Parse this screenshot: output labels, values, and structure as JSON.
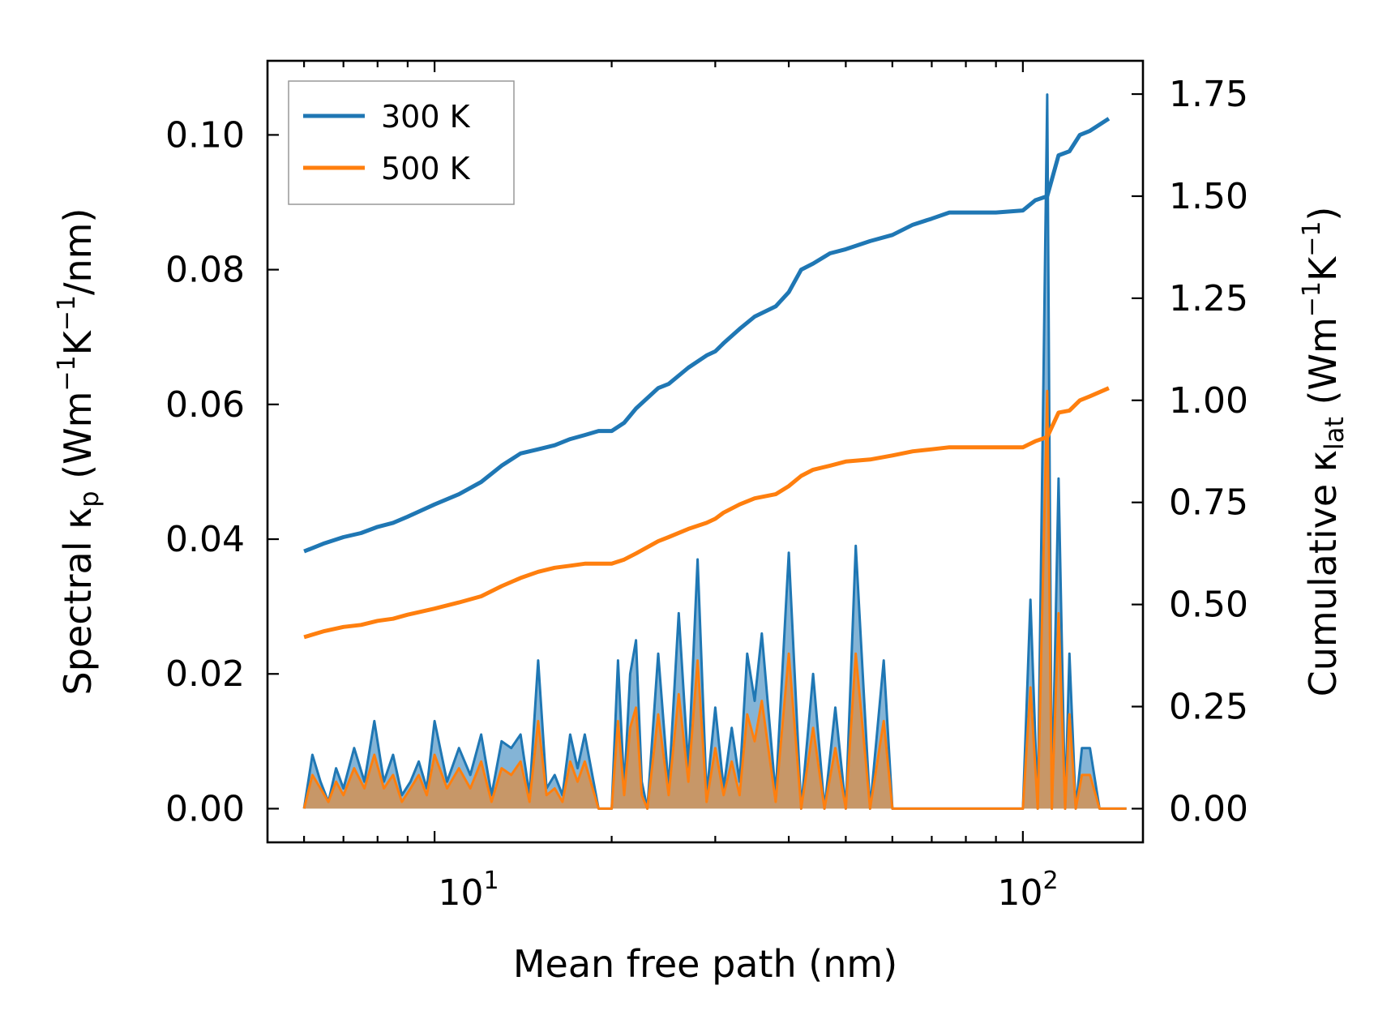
{
  "chart_data": {
    "type": "line",
    "xlabel": "Mean free path (nm)",
    "ylabel_left": "Spectral κp (Wm−1K−1/nm)",
    "ylabel_right": "Cumulative κlat (Wm−1K−1)",
    "xscale": "log",
    "xlim": [
      5.2,
      160
    ],
    "ylim_left": [
      -0.005,
      0.111
    ],
    "ylim_right": [
      -0.0825,
      1.8315
    ],
    "x_ticks": [
      {
        "value": 10,
        "base": "10",
        "exp": "1"
      },
      {
        "value": 100,
        "base": "10",
        "exp": "2"
      }
    ],
    "y_left_ticks": [
      0.0,
      0.02,
      0.04,
      0.06,
      0.08,
      0.1
    ],
    "y_left_tick_labels": [
      "0.00",
      "0.02",
      "0.04",
      "0.06",
      "0.08",
      "0.10"
    ],
    "y_right_ticks": [
      0.0,
      0.25,
      0.5,
      0.75,
      1.0,
      1.25,
      1.5,
      1.75
    ],
    "y_right_tick_labels": [
      "0.00",
      "0.25",
      "0.50",
      "0.75",
      "1.00",
      "1.25",
      "1.50",
      "1.75"
    ],
    "legend": {
      "position": "top-left",
      "entries": [
        "300 K",
        "500 K"
      ]
    },
    "series": [
      {
        "name": "300 K",
        "color": "#1f77b4",
        "cumulative": {
          "x": [
            6.0,
            6.5,
            7.0,
            7.5,
            8.0,
            8.5,
            9.0,
            10.0,
            11.0,
            12.0,
            13.0,
            14.0,
            15.0,
            16.0,
            17.0,
            18.0,
            19.0,
            20.0,
            21.0,
            22.0,
            24.0,
            25.0,
            27.0,
            29.0,
            30.0,
            31.0,
            33.0,
            35.0,
            38.0,
            40.0,
            42.0,
            44.0,
            47.0,
            50.0,
            55.0,
            60.0,
            65.0,
            70.0,
            75.0,
            80.0,
            90.0,
            100.0,
            105.0,
            110.0,
            115.0,
            120.0,
            125.0,
            130.0,
            140.0
          ],
          "y": [
            0.63,
            0.65,
            0.665,
            0.675,
            0.69,
            0.7,
            0.715,
            0.745,
            0.77,
            0.8,
            0.84,
            0.87,
            0.88,
            0.89,
            0.905,
            0.915,
            0.925,
            0.925,
            0.945,
            0.98,
            1.03,
            1.04,
            1.08,
            1.11,
            1.12,
            1.14,
            1.175,
            1.205,
            1.23,
            1.265,
            1.32,
            1.335,
            1.36,
            1.37,
            1.39,
            1.405,
            1.43,
            1.445,
            1.46,
            1.46,
            1.46,
            1.465,
            1.49,
            1.5,
            1.6,
            1.61,
            1.65,
            1.66,
            1.69
          ]
        },
        "spectral": {
          "x": [
            6.0,
            6.2,
            6.4,
            6.6,
            6.8,
            7.0,
            7.3,
            7.6,
            7.9,
            8.2,
            8.5,
            8.8,
            9.1,
            9.4,
            9.7,
            10.0,
            10.5,
            11.0,
            11.5,
            12.0,
            12.5,
            13.0,
            13.5,
            14.0,
            14.5,
            15.0,
            15.5,
            16.0,
            16.5,
            17.0,
            17.5,
            18.0,
            19.0,
            20.0,
            20.5,
            21.0,
            21.5,
            22.0,
            22.5,
            23.0,
            24.0,
            25.0,
            26.0,
            27.0,
            28.0,
            29.0,
            30.0,
            31.0,
            32.0,
            33.0,
            34.0,
            35.0,
            36.0,
            38.0,
            40.0,
            42.0,
            44.0,
            46.0,
            48.0,
            50.0,
            52.0,
            55.0,
            58.0,
            60.0,
            63.0,
            66.0,
            70.0,
            75.0,
            80.0,
            85.0,
            90.0,
            95.0,
            100.0,
            103.0,
            106.0,
            110.0,
            112.0,
            115.0,
            118.0,
            120.0,
            123.0,
            126.0,
            130.0,
            135.0,
            140.0,
            145.0,
            150.0
          ],
          "y": [
            0.0,
            0.008,
            0.004,
            0.001,
            0.006,
            0.003,
            0.009,
            0.004,
            0.013,
            0.004,
            0.008,
            0.002,
            0.004,
            0.007,
            0.003,
            0.013,
            0.004,
            0.009,
            0.005,
            0.011,
            0.002,
            0.01,
            0.009,
            0.011,
            0.002,
            0.022,
            0.003,
            0.005,
            0.002,
            0.011,
            0.006,
            0.011,
            0.0,
            0.0,
            0.022,
            0.003,
            0.02,
            0.025,
            0.004,
            0.0,
            0.023,
            0.003,
            0.029,
            0.006,
            0.037,
            0.002,
            0.015,
            0.003,
            0.012,
            0.004,
            0.023,
            0.016,
            0.026,
            0.002,
            0.038,
            0.0,
            0.02,
            0.0,
            0.015,
            0.0,
            0.039,
            0.0,
            0.022,
            0.0,
            0.0,
            0.0,
            0.0,
            0.0,
            0.0,
            0.0,
            0.0,
            0.0,
            0.0,
            0.031,
            0.0,
            0.106,
            0.0,
            0.049,
            0.0,
            0.023,
            0.0,
            0.009,
            0.009,
            0.0,
            0.0,
            0.0,
            0.0
          ]
        }
      },
      {
        "name": "500 K",
        "color": "#ff7f0e",
        "cumulative": {
          "x": [
            6.0,
            6.5,
            7.0,
            7.5,
            8.0,
            8.5,
            9.0,
            10.0,
            11.0,
            12.0,
            13.0,
            14.0,
            15.0,
            16.0,
            17.0,
            18.0,
            19.0,
            20.0,
            21.0,
            22.0,
            24.0,
            25.0,
            27.0,
            29.0,
            30.0,
            31.0,
            33.0,
            35.0,
            38.0,
            40.0,
            42.0,
            44.0,
            47.0,
            50.0,
            55.0,
            60.0,
            65.0,
            70.0,
            75.0,
            80.0,
            90.0,
            100.0,
            105.0,
            110.0,
            115.0,
            120.0,
            125.0,
            130.0,
            140.0
          ],
          "y": [
            0.42,
            0.435,
            0.445,
            0.45,
            0.46,
            0.465,
            0.475,
            0.49,
            0.505,
            0.52,
            0.545,
            0.565,
            0.58,
            0.59,
            0.595,
            0.6,
            0.6,
            0.6,
            0.61,
            0.625,
            0.655,
            0.665,
            0.685,
            0.7,
            0.71,
            0.725,
            0.745,
            0.76,
            0.77,
            0.79,
            0.815,
            0.83,
            0.84,
            0.85,
            0.855,
            0.865,
            0.875,
            0.88,
            0.885,
            0.885,
            0.885,
            0.885,
            0.9,
            0.91,
            0.97,
            0.975,
            1.0,
            1.01,
            1.03
          ]
        },
        "spectral": {
          "x": [
            6.0,
            6.2,
            6.4,
            6.6,
            6.8,
            7.0,
            7.3,
            7.6,
            7.9,
            8.2,
            8.5,
            8.8,
            9.1,
            9.4,
            9.7,
            10.0,
            10.5,
            11.0,
            11.5,
            12.0,
            12.5,
            13.0,
            13.5,
            14.0,
            14.5,
            15.0,
            15.5,
            16.0,
            16.5,
            17.0,
            17.5,
            18.0,
            19.0,
            20.0,
            20.5,
            21.0,
            21.5,
            22.0,
            22.5,
            23.0,
            24.0,
            25.0,
            26.0,
            27.0,
            28.0,
            29.0,
            30.0,
            31.0,
            32.0,
            33.0,
            34.0,
            35.0,
            36.0,
            38.0,
            40.0,
            42.0,
            44.0,
            46.0,
            48.0,
            50.0,
            52.0,
            55.0,
            58.0,
            60.0,
            63.0,
            66.0,
            70.0,
            75.0,
            80.0,
            85.0,
            90.0,
            95.0,
            100.0,
            103.0,
            106.0,
            110.0,
            112.0,
            115.0,
            118.0,
            120.0,
            123.0,
            126.0,
            130.0,
            135.0,
            140.0,
            145.0,
            150.0
          ],
          "y": [
            0.0,
            0.005,
            0.003,
            0.001,
            0.004,
            0.002,
            0.006,
            0.003,
            0.008,
            0.003,
            0.005,
            0.001,
            0.003,
            0.005,
            0.002,
            0.008,
            0.003,
            0.006,
            0.003,
            0.007,
            0.001,
            0.006,
            0.005,
            0.007,
            0.001,
            0.013,
            0.002,
            0.003,
            0.001,
            0.007,
            0.004,
            0.007,
            0.0,
            0.0,
            0.013,
            0.002,
            0.012,
            0.015,
            0.002,
            0.0,
            0.014,
            0.002,
            0.017,
            0.004,
            0.022,
            0.001,
            0.009,
            0.002,
            0.007,
            0.002,
            0.014,
            0.01,
            0.016,
            0.001,
            0.023,
            0.0,
            0.012,
            0.0,
            0.009,
            0.0,
            0.023,
            0.0,
            0.013,
            0.0,
            0.0,
            0.0,
            0.0,
            0.0,
            0.0,
            0.0,
            0.0,
            0.0,
            0.0,
            0.018,
            0.0,
            0.062,
            0.0,
            0.029,
            0.0,
            0.014,
            0.0,
            0.005,
            0.005,
            0.0,
            0.0,
            0.0,
            0.0
          ]
        }
      }
    ]
  }
}
